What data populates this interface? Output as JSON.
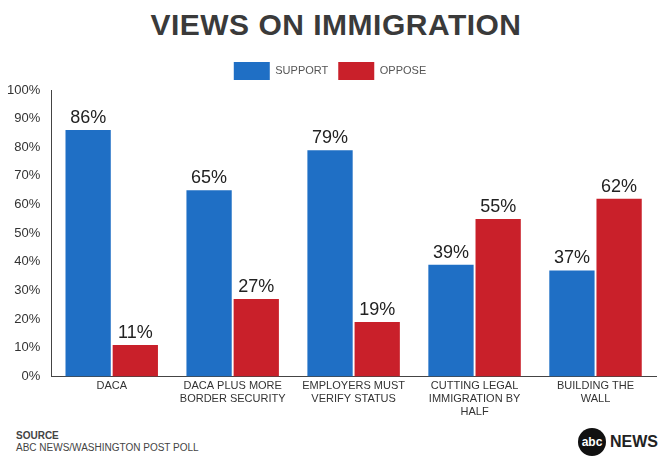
{
  "chart_data": {
    "type": "bar",
    "title": "VIEWS ON IMMIGRATION",
    "categories": [
      "DACA",
      "DACA PLUS MORE BORDER SECURITY",
      "EMPLOYERS MUST VERIFY STATUS",
      "CUTTING LEGAL IMMIGRATION BY HALF",
      "BUILDING THE WALL"
    ],
    "series": [
      {
        "name": "SUPPORT",
        "color": "#1f6fc5",
        "values": [
          86,
          65,
          79,
          39,
          37
        ],
        "value_labels": [
          "86%",
          "65%",
          "79%",
          "39%",
          "37%"
        ]
      },
      {
        "name": "OPPOSE",
        "color": "#c9202a",
        "values": [
          11,
          27,
          19,
          55,
          62
        ],
        "value_labels": [
          "11%",
          "27%",
          "19%",
          "55%",
          "62%"
        ]
      }
    ],
    "ylim": [
      0,
      100
    ],
    "yticks": [
      {
        "value": 0,
        "label": "0%"
      },
      {
        "value": 10,
        "label": "10%"
      },
      {
        "value": 20,
        "label": "20%"
      },
      {
        "value": 30,
        "label": "30%"
      },
      {
        "value": 40,
        "label": "40%"
      },
      {
        "value": 50,
        "label": "50%"
      },
      {
        "value": 60,
        "label": "60%"
      },
      {
        "value": 70,
        "label": "70%"
      },
      {
        "value": 80,
        "label": "80%"
      },
      {
        "value": 90,
        "label": "90%"
      },
      {
        "value": 100,
        "label": "100%"
      }
    ],
    "grid": false,
    "legend": "top",
    "data_labels": true,
    "source_label": "SOURCE",
    "source": "ABC NEWS/WASHINGTON POST POLL",
    "logo": [
      "abc",
      "NEWS"
    ]
  }
}
